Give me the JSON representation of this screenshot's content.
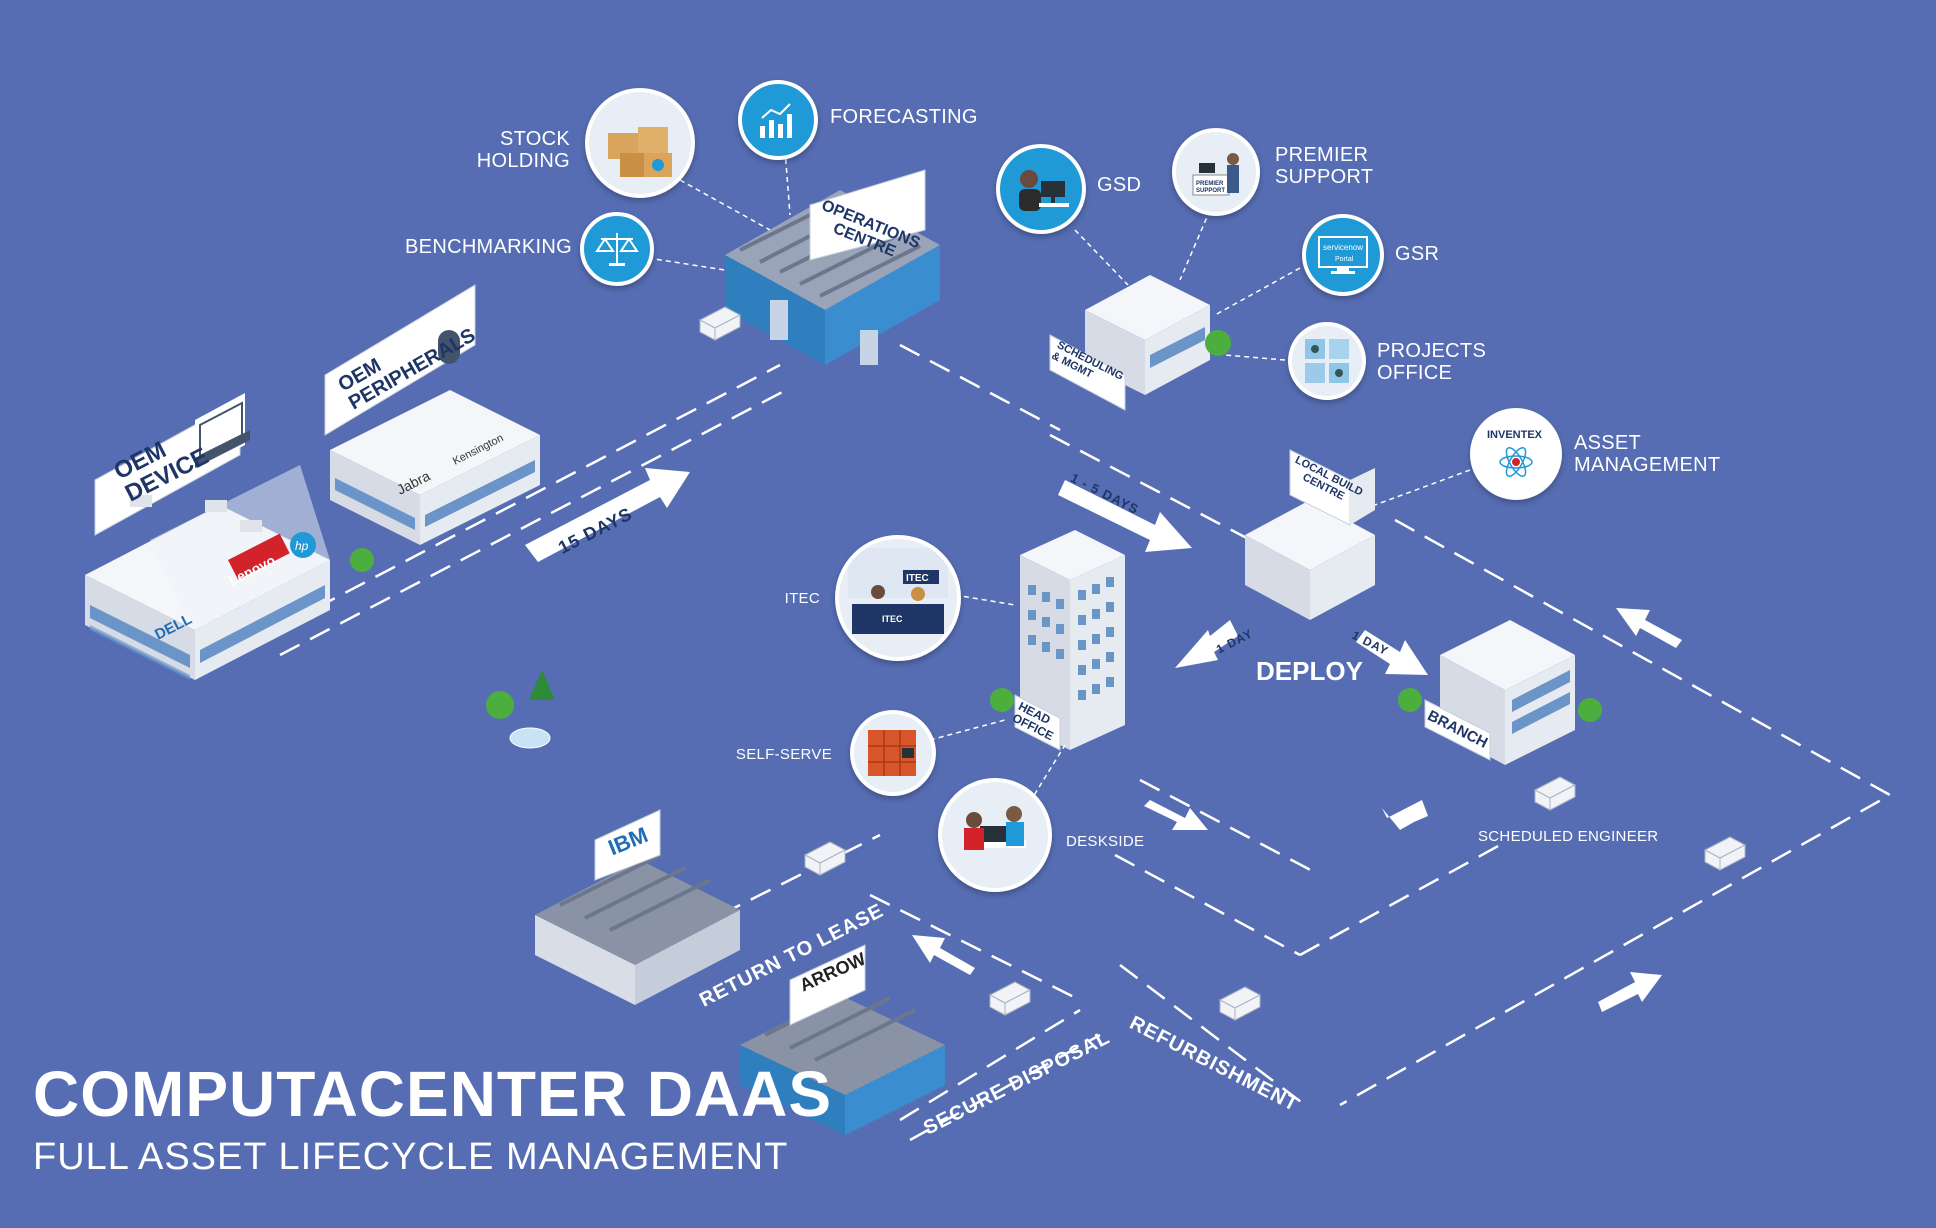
{
  "title": "COMPUTACENTER DAAS",
  "subtitle": "FULL ASSET LIFECYCLE MANAGEMENT",
  "colors": {
    "background": "#566db3",
    "icon_circle": "#1f9ad6",
    "road": "#ffffff",
    "building": "#eef1f6",
    "sign_text": "#1e3566"
  },
  "buildings": {
    "oem_device": {
      "sign": "OEM\nDEVICE",
      "brands": [
        "DELL",
        "Lenovo.",
        "hp"
      ]
    },
    "oem_peripherals": {
      "sign": "OEM\nPERIPHERALS",
      "brands": [
        "Jabra",
        "Kensington"
      ]
    },
    "operations_centre": {
      "sign": "OPERATIONS\nCENTRE"
    },
    "scheduling": {
      "sign": "SCHEDULING\n& MGMT"
    },
    "local_build_centre": {
      "sign": "LOCAL BUILD\nCENTRE"
    },
    "head_office": {
      "sign": "HEAD\nOFFICE"
    },
    "branch": {
      "sign": "BRANCH"
    },
    "ibm": {
      "sign": "IBM"
    },
    "arrow": {
      "sign": "ARROW"
    }
  },
  "labels": {
    "stock_holding": "STOCK\nHOLDING",
    "forecasting": "FORECASTING",
    "benchmarking": "BENCHMARKING",
    "gsd": "GSD",
    "premier_support": "PREMIER\nSUPPORT",
    "gsr": "GSR",
    "projects_office": "PROJECTS\nOFFICE",
    "asset_management": "ASSET\nMANAGEMENT",
    "itec": "ITEC",
    "self_serve": "SELF-SERVE",
    "deskside": "DESKSIDE",
    "scheduled_engineer": "SCHEDULED ENGINEER"
  },
  "icon_texts": {
    "inventex": "INVENTEX",
    "servicenow": "servicenow",
    "portal": "Portal",
    "premier": "PREMIER\nSUPPORT",
    "itec_logo": "ITEC"
  },
  "routes": {
    "days_15": "15 DAYS",
    "days_1_5": "1 - 5 DAYS",
    "day_1_left": "1 DAY",
    "day_1_right": "1 DAY",
    "deploy": "DEPLOY",
    "return_to_lease": "RETURN TO LEASE",
    "secure_disposal": "SECURE DISPOSAL",
    "refurbishment": "REFURBISHMENT"
  },
  "icons": [
    "stock-boxes-icon",
    "forecasting-chart-icon",
    "benchmarking-scales-icon",
    "gsd-agent-icon",
    "premier-support-icon",
    "servicenow-portal-icon",
    "projects-office-icon",
    "inventex-logo-icon",
    "itec-desk-icon",
    "lockers-icon",
    "deskside-icon",
    "mouse-icon",
    "laptop-icon"
  ]
}
